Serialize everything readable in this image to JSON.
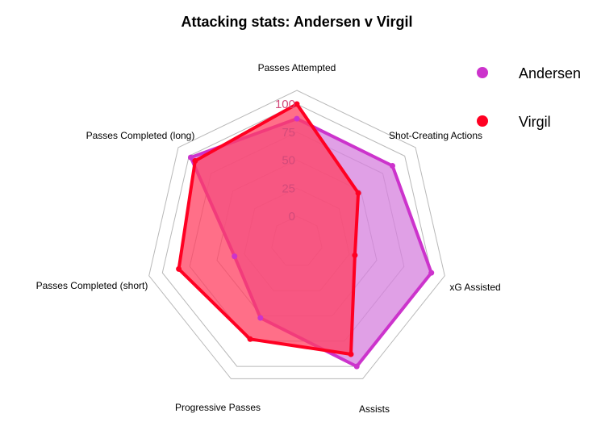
{
  "chart_data": {
    "type": "radar",
    "title": "Attacking stats: Andersen v Virgil",
    "axes": [
      "Passes Attempted",
      "Shot-Creating Actions",
      "xG Assisted",
      "Assists",
      "Progressive Passes",
      "Passes Completed (short)",
      "Passes Completed (long)"
    ],
    "ticks": [
      "0",
      "25",
      "50",
      "75",
      "100"
    ],
    "ylim": [
      0,
      100
    ],
    "grid": true,
    "legend_position": "top-right",
    "series": [
      {
        "name": "Andersen",
        "color": "#cc33cc",
        "fill": "#d580dd",
        "values": [
          87,
          86,
          100,
          100,
          52,
          34,
          98
        ]
      },
      {
        "name": "Virgil",
        "color": "#ff0022",
        "fill": "#ff3f60",
        "values": [
          100,
          47,
          30,
          88,
          73,
          85,
          93
        ]
      }
    ]
  }
}
